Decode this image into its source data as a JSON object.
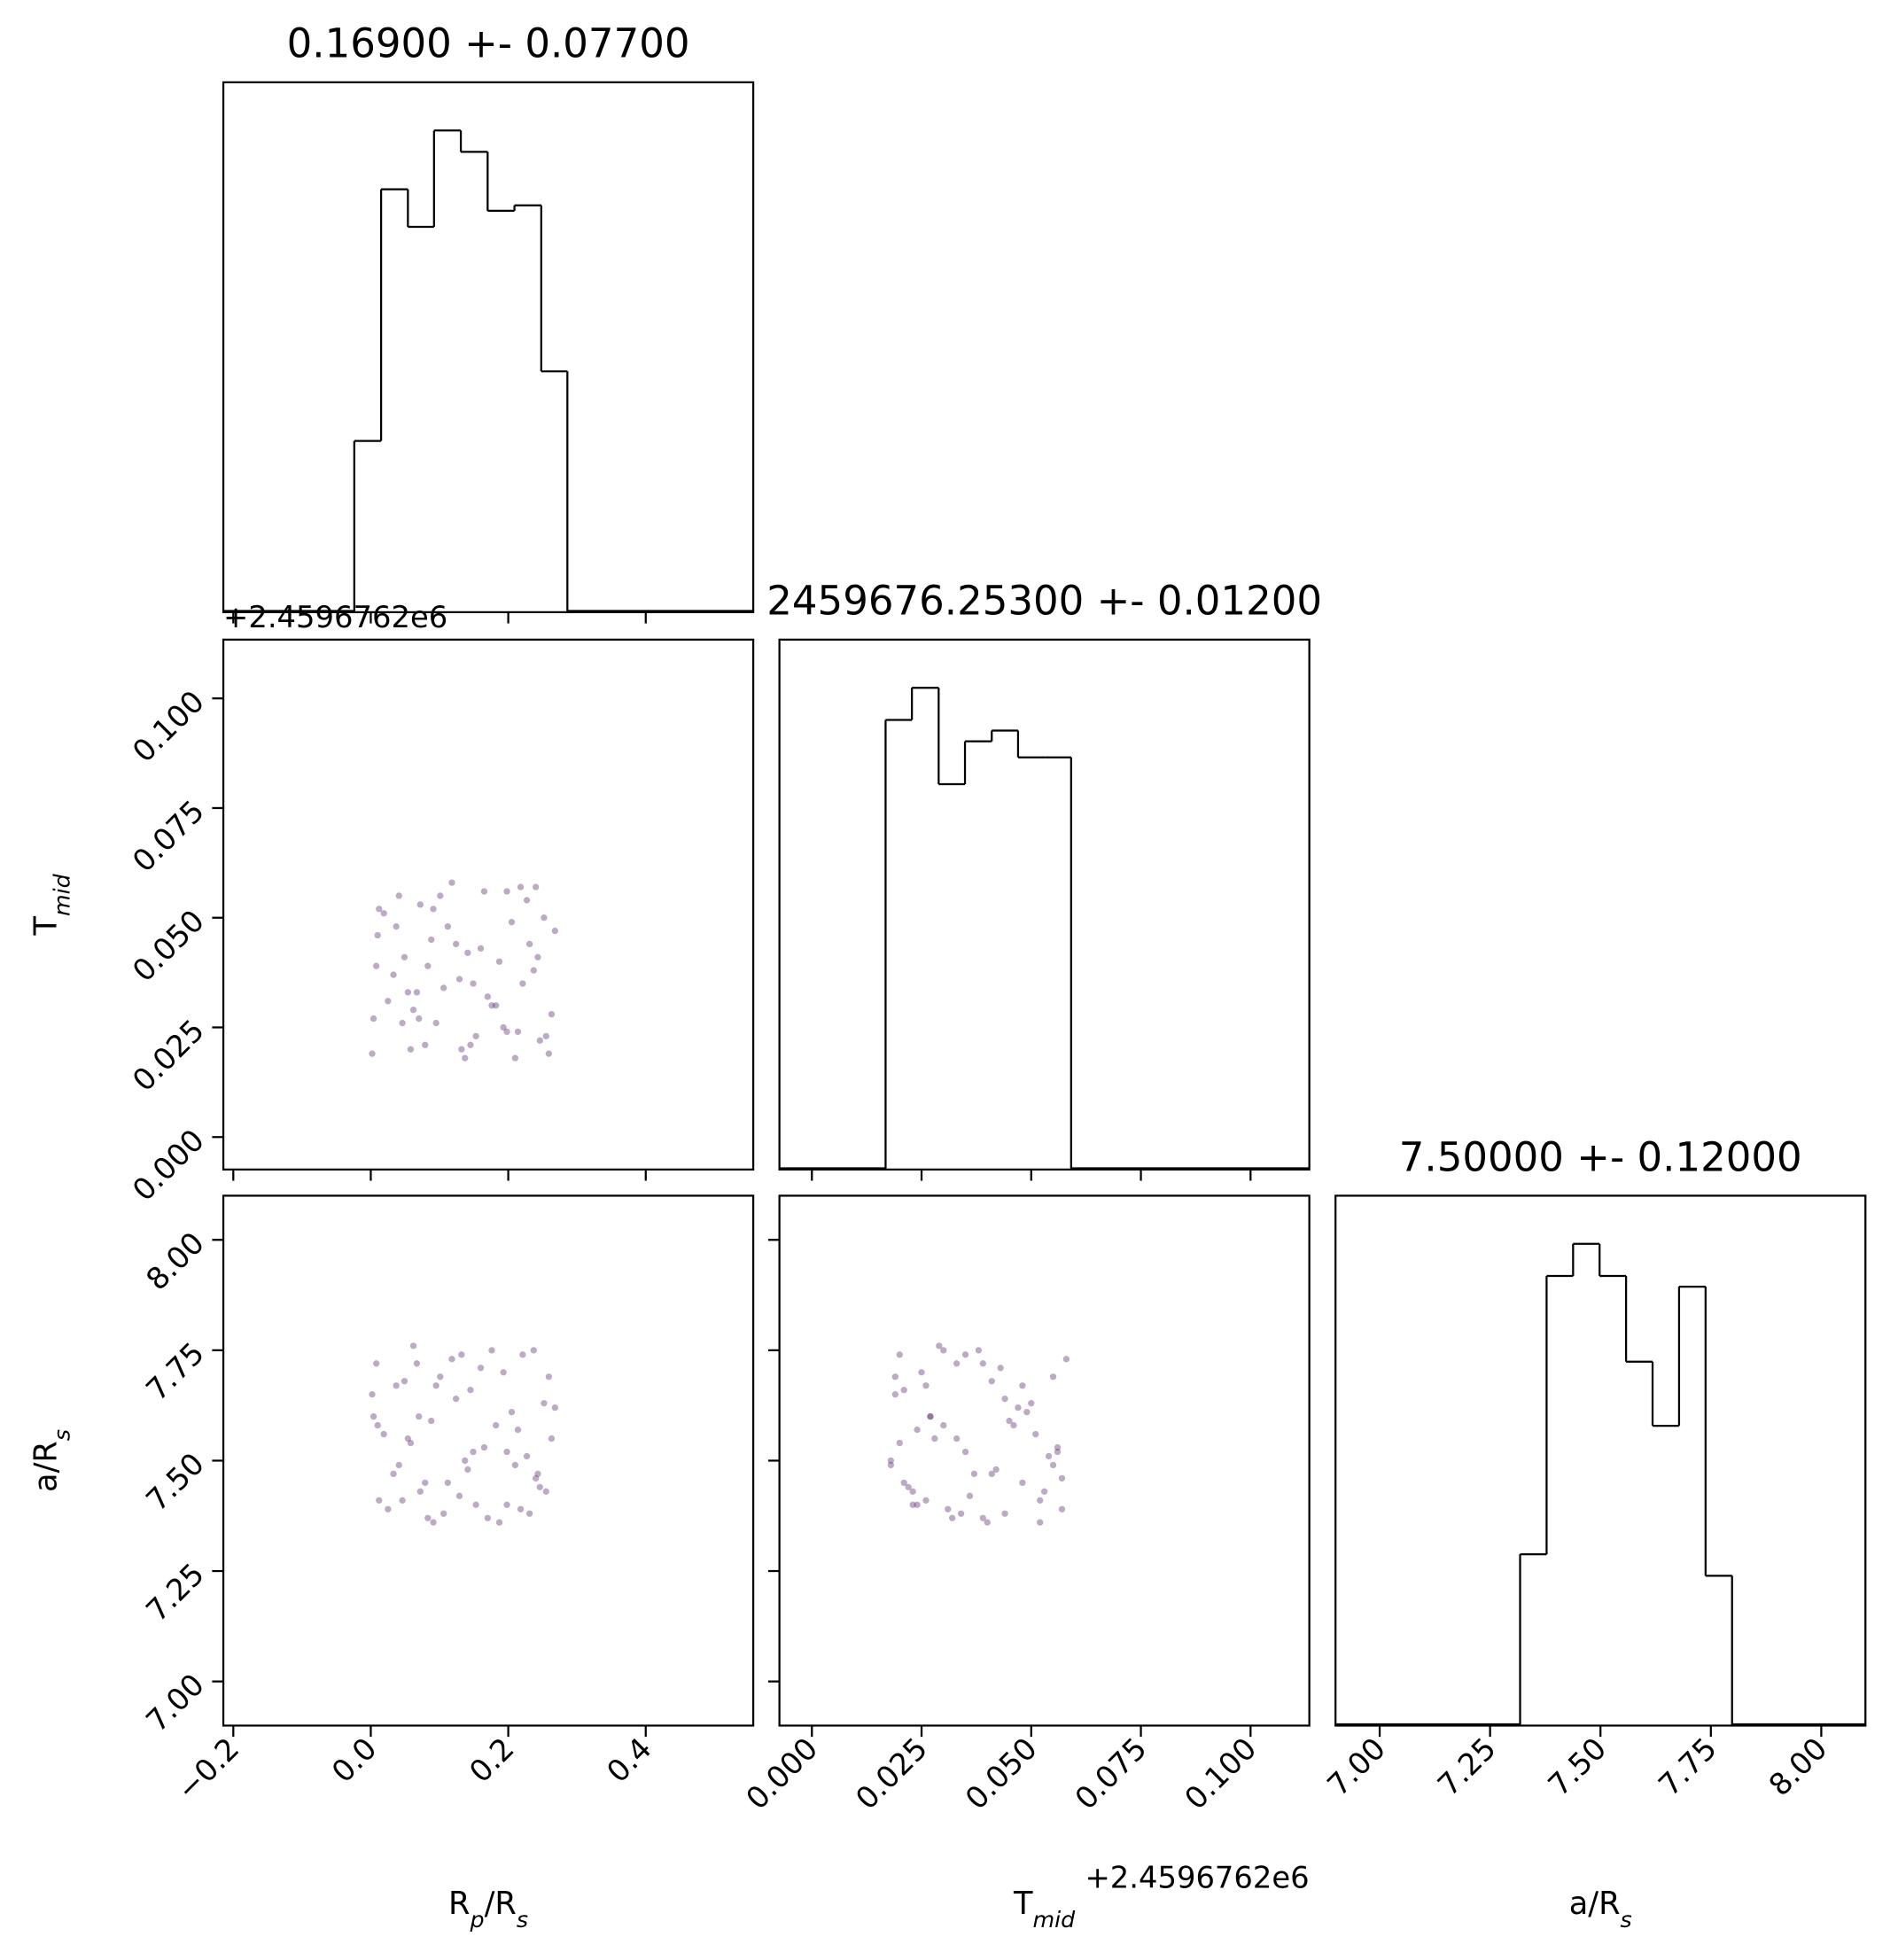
{
  "chart_data": {
    "type": "corner",
    "color": "#5b2a6e",
    "parameters": [
      {
        "label": [
          {
            "text": "R"
          },
          {
            "text": "p",
            "sub": true
          },
          {
            "text": "/R"
          },
          {
            "text": "s",
            "sub": true
          }
        ],
        "title": "0.16900 +- 0.07700",
        "lim": [
          -0.2145,
          0.5564
        ],
        "ticks": [
          {
            "value": -0.2,
            "label": "−0.2"
          },
          {
            "value": 0,
            "label": "0.0"
          },
          0.2,
          0.4
        ],
        "bins": [
          -0.024,
          0.015,
          0.054,
          0.092,
          0.131,
          0.17,
          0.209,
          0.248,
          0.286
        ],
        "counts": [
          32,
          79,
          72,
          90,
          86,
          75,
          76,
          45
        ],
        "hist_ylim": [
          0,
          99
        ],
        "samples": [
          0.012,
          0.145,
          0.231,
          0.067,
          0.198,
          0.004,
          0.112,
          0.259,
          0.083,
          0.176,
          0.041,
          0.214,
          0.129,
          0.252,
          0.058,
          0.16,
          0.025,
          0.24,
          0.095,
          0.187,
          0.01,
          0.137,
          0.221,
          0.072,
          0.263,
          0.049,
          0.153,
          0.205,
          0.033,
          0.118,
          0.246,
          0.088,
          0.17,
          0.002,
          0.227,
          0.062,
          0.141,
          0.193,
          0.019,
          0.106,
          0.268,
          0.079,
          0.165,
          0.237,
          0.046,
          0.124,
          0.21,
          0.008,
          0.091,
          0.182,
          0.255,
          0.037,
          0.149,
          0.218,
          0.07,
          0.132,
          0.243,
          0.054,
          0.101,
          0.198
        ]
      },
      {
        "label": [
          {
            "text": "T"
          },
          {
            "text": "mid",
            "sub": true
          }
        ],
        "title": "2459676.25300 +- 0.01200",
        "offset": "+2.4596762e6",
        "lim": [
          -0.0074,
          0.1134
        ],
        "ticks": [
          {
            "value": 0,
            "label": "0.000"
          },
          0.025,
          {
            "value": 0.05,
            "label": "0.050"
          },
          0.075,
          {
            "value": 0.1,
            "label": "0.100"
          }
        ],
        "bins": [
          0.0168,
          0.0228,
          0.0289,
          0.0349,
          0.041,
          0.047,
          0.0531,
          0.0591
        ],
        "counts": [
          84,
          90,
          72,
          80,
          82,
          77,
          77
        ],
        "hist_ylim": [
          0,
          99
        ],
        "samples": [
          0.052,
          0.021,
          0.044,
          0.033,
          0.056,
          0.027,
          0.048,
          0.019,
          0.039,
          0.03,
          0.055,
          0.024,
          0.036,
          0.05,
          0.02,
          0.043,
          0.031,
          0.057,
          0.026,
          0.04,
          0.046,
          0.018,
          0.035,
          0.053,
          0.028,
          0.041,
          0.023,
          0.049,
          0.037,
          0.058,
          0.022,
          0.045,
          0.032,
          0.019,
          0.054,
          0.029,
          0.042,
          0.025,
          0.051,
          0.034,
          0.047,
          0.021,
          0.056,
          0.038,
          0.026,
          0.044,
          0.018,
          0.039,
          0.052,
          0.03,
          0.023,
          0.048,
          0.035,
          0.057,
          0.027,
          0.02,
          0.041,
          0.033,
          0.055,
          0.024
        ]
      },
      {
        "label": [
          {
            "text": "a/R"
          },
          {
            "text": "s",
            "sub": true
          }
        ],
        "title": "7.50000 +- 0.12000",
        "lim": [
          6.9,
          8.1
        ],
        "ticks": [
          {
            "value": 7,
            "label": "7.00"
          },
          7.25,
          {
            "value": 7.5,
            "label": "7.50"
          },
          7.75,
          {
            "value": 8,
            "label": "8.00"
          }
        ],
        "bins": [
          7.318,
          7.378,
          7.438,
          7.498,
          7.558,
          7.618,
          7.678,
          7.738,
          7.798
        ],
        "counts": [
          32,
          84,
          90,
          84,
          68,
          56,
          82,
          28
        ],
        "hist_ylim": [
          0,
          99
        ],
        "samples": [
          7.41,
          7.66,
          7.38,
          7.72,
          7.52,
          7.6,
          7.45,
          7.69,
          7.37,
          7.75,
          7.49,
          7.57,
          7.42,
          7.63,
          7.54,
          7.71,
          7.39,
          7.46,
          7.67,
          7.36,
          7.58,
          7.5,
          7.74,
          7.43,
          7.55,
          7.68,
          7.4,
          7.61,
          7.47,
          7.73,
          7.44,
          7.59,
          7.37,
          7.65,
          7.51,
          7.76,
          7.48,
          7.7,
          7.56,
          7.38,
          7.62,
          7.45,
          7.53,
          7.75,
          7.41,
          7.64,
          7.49,
          7.72,
          7.36,
          7.58,
          7.43,
          7.67,
          7.52,
          7.39,
          7.6,
          7.74,
          7.47,
          7.55,
          7.69,
          7.4
        ]
      }
    ]
  }
}
